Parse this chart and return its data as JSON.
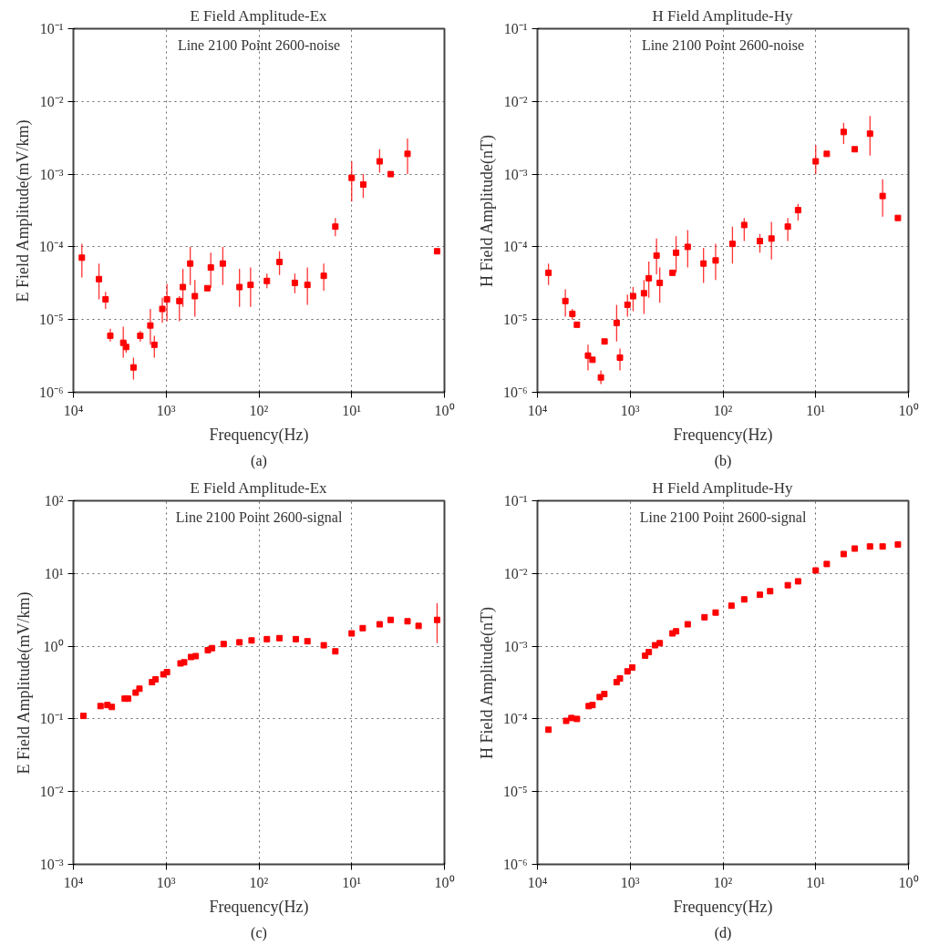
{
  "chart_data": [
    {
      "type": "scatter",
      "title": "E Field Amplitude-Ex",
      "xlabel": "Frequency(Hz)",
      "ylabel": "E Field Amplitude(mV/km)",
      "annotations": [
        "Line 2100 Point 2600-noise",
        "(a)"
      ],
      "log": "xy",
      "grid": true,
      "marker": "square",
      "color": "#ff0000",
      "xlim": [
        10000,
        1
      ],
      "xticks": [
        {
          "value": 10000,
          "label": "10⁴"
        },
        {
          "value": 1000,
          "label": "10³"
        },
        {
          "value": 100,
          "label": "10²"
        },
        {
          "value": 10,
          "label": "10¹"
        },
        {
          "value": 1,
          "label": "10⁰"
        }
      ],
      "ylim": [
        1e-06,
        0.1
      ],
      "yticks": [
        {
          "value": 1e-06,
          "label": "10⁻⁶"
        },
        {
          "value": 1e-05,
          "label": "10⁻⁵"
        },
        {
          "value": 0.0001,
          "label": "10⁻⁴"
        },
        {
          "value": 0.001,
          "label": "10⁻³"
        },
        {
          "value": 0.01,
          "label": "10⁻²"
        },
        {
          "value": 0.1,
          "label": "10⁻¹"
        }
      ],
      "x": [
        8100,
        5300,
        4500,
        4000,
        2900,
        2700,
        2250,
        1900,
        1480,
        1340,
        1100,
        980,
        720,
        660,
        550,
        490,
        360,
        330,
        245,
        162,
        123,
        82,
        60,
        41,
        30,
        20,
        15,
        10,
        7.5,
        5.0,
        3.8,
        2.5,
        1.2
      ],
      "values": [
        7.1e-05,
        3.6e-05,
        1.9e-05,
        6e-06,
        4.8e-06,
        4.2e-06,
        2.2e-06,
        6e-06,
        8.3e-06,
        4.5e-06,
        1.4e-05,
        1.9e-05,
        1.8e-05,
        2.8e-05,
        5.9e-05,
        2.1e-05,
        2.7e-05,
        5.2e-05,
        5.9e-05,
        2.8e-05,
        3e-05,
        3.4e-05,
        6.2e-05,
        3.2e-05,
        3e-05,
        4e-05,
        0.00019,
        0.00089,
        0.00072,
        0.0015,
        0.001,
        0.0019,
        8.7e-05
      ],
      "errors": [
        [
          3.8e-05,
          0.00011
        ],
        [
          1.9e-05,
          5.9e-05
        ],
        [
          1.4e-05,
          2.4e-05
        ],
        [
          5e-06,
          7.5e-06
        ],
        [
          3e-06,
          8e-06
        ],
        [
          3.5e-06,
          5e-06
        ],
        [
          1.5e-06,
          3e-06
        ],
        [
          5e-06,
          7e-06
        ],
        [
          4.5e-06,
          1.4e-05
        ],
        [
          3e-06,
          6e-06
        ],
        [
          9e-06,
          2e-05
        ],
        [
          9.5e-06,
          3.1e-05
        ],
        [
          9.5e-06,
          2.1e-05
        ],
        [
          1.5e-05,
          5e-05
        ],
        [
          3e-05,
          0.0001
        ],
        [
          1.1e-05,
          3.5e-05
        ],
        null,
        [
          2.7e-05,
          8.3e-05
        ],
        [
          3e-05,
          0.0001
        ],
        [
          1.5e-05,
          5e-05
        ],
        [
          1.5e-05,
          5.2e-05
        ],
        [
          2.7e-05,
          4.3e-05
        ],
        [
          4.1e-05,
          8.7e-05
        ],
        [
          2.3e-05,
          4.3e-05
        ],
        [
          1.6e-05,
          5.2e-05
        ],
        [
          2.5e-05,
          5.9e-05
        ],
        [
          0.00014,
          0.00025
        ],
        [
          0.00042,
          0.0015
        ],
        [
          0.00047,
          0.001
        ],
        [
          0.00105,
          0.0022
        ],
        null,
        [
          0.001,
          0.0031
        ],
        null
      ]
    },
    {
      "type": "scatter",
      "title": "H Field Amplitude-Hy",
      "xlabel": "Frequency(Hz)",
      "ylabel": "H Field Amplitude(nT)",
      "annotations": [
        "Line 2100 Point 2600-noise",
        "(b)"
      ],
      "log": "xy",
      "grid": true,
      "marker": "square",
      "color": "#ff0000",
      "xlim": [
        10000,
        1
      ],
      "xticks": [
        {
          "value": 10000,
          "label": "10⁴"
        },
        {
          "value": 1000,
          "label": "10³"
        },
        {
          "value": 100,
          "label": "10²"
        },
        {
          "value": 10,
          "label": "10¹"
        },
        {
          "value": 1,
          "label": "10⁰"
        }
      ],
      "ylim": [
        1e-06,
        0.1
      ],
      "yticks": [
        {
          "value": 1e-06,
          "label": "10⁻⁶"
        },
        {
          "value": 1e-05,
          "label": "10⁻⁵"
        },
        {
          "value": 0.0001,
          "label": "10⁻⁴"
        },
        {
          "value": 0.001,
          "label": "10⁻³"
        },
        {
          "value": 0.01,
          "label": "10⁻²"
        },
        {
          "value": 0.1,
          "label": "10⁻¹"
        }
      ],
      "x": [
        7600,
        5000,
        4200,
        3750,
        2850,
        2550,
        2070,
        1890,
        1400,
        1290,
        1070,
        930,
        710,
        630,
        520,
        480,
        350,
        320,
        240,
        162,
        120,
        79,
        59,
        40,
        30,
        20,
        15.5,
        10,
        7.6,
        5.0,
        3.8,
        2.6,
        1.9,
        1.3
      ],
      "values": [
        4.4e-05,
        1.8e-05,
        1.2e-05,
        8.5e-06,
        3.2e-06,
        2.8e-06,
        1.6e-06,
        5e-06,
        9e-06,
        3e-06,
        1.6e-05,
        2.1e-05,
        2.3e-05,
        3.7e-05,
        7.6e-05,
        3.2e-05,
        4.4e-05,
        8.3e-05,
        0.0001,
        5.9e-05,
        6.5e-05,
        0.00011,
        0.0002,
        0.00012,
        0.00013,
        0.00019,
        0.00032,
        0.0015,
        0.0019,
        0.0038,
        0.0022,
        0.0036,
        0.0005,
        0.00025
      ],
      "errors": [
        [
          3e-05,
          5.9e-05
        ],
        [
          1.1e-05,
          2.6e-05
        ],
        [
          1e-05,
          1.4e-05
        ],
        null,
        [
          2e-06,
          4.5e-06
        ],
        null,
        [
          1.3e-06,
          2e-06
        ],
        null,
        [
          5e-06,
          1.6e-05
        ],
        [
          2e-06,
          4e-06
        ],
        [
          1.1e-05,
          2.2e-05
        ],
        [
          1.3e-05,
          2.8e-05
        ],
        [
          1.2e-05,
          3.5e-05
        ],
        [
          2e-05,
          6.3e-05
        ],
        [
          4.2e-05,
          0.00013
        ],
        [
          1.7e-05,
          5.2e-05
        ],
        null,
        [
          4.4e-05,
          0.00014
        ],
        [
          5.2e-05,
          0.00017
        ],
        [
          3.2e-05,
          9.7e-05
        ],
        [
          3.5e-05,
          0.00011
        ],
        [
          5.9e-05,
          0.00019
        ],
        [
          0.00012,
          0.00025
        ],
        [
          8.3e-05,
          0.00015
        ],
        [
          6.7e-05,
          0.00022
        ],
        [
          0.00012,
          0.00025
        ],
        [
          0.00023,
          0.00039
        ],
        [
          0.001,
          0.0025
        ],
        null,
        [
          0.0026,
          0.0051
        ],
        null,
        [
          0.0018,
          0.0063
        ],
        [
          0.00026,
          0.00085
        ],
        null
      ]
    },
    {
      "type": "scatter",
      "title": "E Field Amplitude-Ex",
      "xlabel": "Frequency(Hz)",
      "ylabel": "E Field Amplitude(mV/km)",
      "annotations": [
        "Line 2100 Point 2600-signal",
        "(c)"
      ],
      "log": "xy",
      "grid": true,
      "marker": "square",
      "color": "#ff0000",
      "xlim": [
        10000,
        1
      ],
      "xticks": [
        {
          "value": 10000,
          "label": "10⁴"
        },
        {
          "value": 1000,
          "label": "10³"
        },
        {
          "value": 100,
          "label": "10²"
        },
        {
          "value": 10,
          "label": "10¹"
        },
        {
          "value": 1,
          "label": "10⁰"
        }
      ],
      "ylim": [
        0.001,
        100
      ],
      "yticks": [
        {
          "value": 0.001,
          "label": "10⁻³"
        },
        {
          "value": 0.01,
          "label": "10⁻²"
        },
        {
          "value": 0.1,
          "label": "10⁻¹"
        },
        {
          "value": 1,
          "label": "10⁰"
        },
        {
          "value": 10,
          "label": "10¹"
        },
        {
          "value": 100,
          "label": "10²"
        }
      ],
      "x": [
        7800,
        5100,
        4300,
        3850,
        2800,
        2570,
        2130,
        1940,
        1420,
        1300,
        1070,
        980,
        700,
        640,
        540,
        480,
        355,
        320,
        240,
        162,
        120,
        82,
        60,
        40,
        30,
        20,
        15,
        10,
        7.6,
        5.0,
        3.8,
        2.5,
        1.9,
        1.2
      ],
      "values": [
        0.11,
        0.15,
        0.155,
        0.146,
        0.19,
        0.19,
        0.23,
        0.26,
        0.32,
        0.35,
        0.41,
        0.44,
        0.58,
        0.6,
        0.71,
        0.73,
        0.88,
        0.94,
        1.07,
        1.13,
        1.2,
        1.25,
        1.29,
        1.25,
        1.17,
        1.03,
        0.85,
        1.5,
        1.77,
        2.0,
        2.3,
        2.2,
        1.9,
        2.3
      ],
      "errors": [
        null,
        null,
        null,
        null,
        null,
        null,
        null,
        null,
        null,
        null,
        null,
        null,
        null,
        null,
        null,
        null,
        null,
        null,
        null,
        null,
        null,
        null,
        null,
        null,
        null,
        null,
        null,
        null,
        null,
        null,
        null,
        null,
        null,
        [
          1.1,
          3.9
        ]
      ]
    },
    {
      "type": "scatter",
      "title": "H Field Amplitude-Hy",
      "xlabel": "Frequency(Hz)",
      "ylabel": "H Field Amplitude(nT)",
      "annotations": [
        "Line 2100 Point 2600-signal",
        "(d)"
      ],
      "log": "xy",
      "grid": true,
      "marker": "square",
      "color": "#ff0000",
      "xlim": [
        10000,
        1
      ],
      "xticks": [
        {
          "value": 10000,
          "label": "10⁴"
        },
        {
          "value": 1000,
          "label": "10³"
        },
        {
          "value": 100,
          "label": "10²"
        },
        {
          "value": 10,
          "label": "10¹"
        },
        {
          "value": 1,
          "label": "10⁰"
        }
      ],
      "ylim": [
        1e-06,
        0.1
      ],
      "yticks": [
        {
          "value": 1e-06,
          "label": "10⁻⁶"
        },
        {
          "value": 1e-05,
          "label": "10⁻⁵"
        },
        {
          "value": 0.0001,
          "label": "10⁻⁴"
        },
        {
          "value": 0.001,
          "label": "10⁻³"
        },
        {
          "value": 0.01,
          "label": "10⁻²"
        },
        {
          "value": 0.1,
          "label": "10⁻¹"
        }
      ],
      "x": [
        7600,
        4900,
        4300,
        3750,
        2800,
        2550,
        2130,
        1900,
        1400,
        1290,
        1070,
        950,
        690,
        630,
        540,
        480,
        350,
        320,
        240,
        158,
        120,
        81,
        59,
        40,
        31,
        20,
        15.5,
        10,
        7.6,
        5.0,
        3.8,
        2.6,
        1.9,
        1.3
      ],
      "values": [
        7.1e-05,
        9.4e-05,
        0.000103,
        0.0001,
        0.00015,
        0.000155,
        0.0002,
        0.00022,
        0.00032,
        0.00036,
        0.00045,
        0.00051,
        0.00074,
        0.00083,
        0.00103,
        0.0011,
        0.0015,
        0.0016,
        0.002,
        0.0025,
        0.0029,
        0.0036,
        0.0044,
        0.0051,
        0.0057,
        0.0069,
        0.0078,
        0.011,
        0.0135,
        0.0185,
        0.022,
        0.0235,
        0.0235,
        0.025
      ]
    }
  ]
}
